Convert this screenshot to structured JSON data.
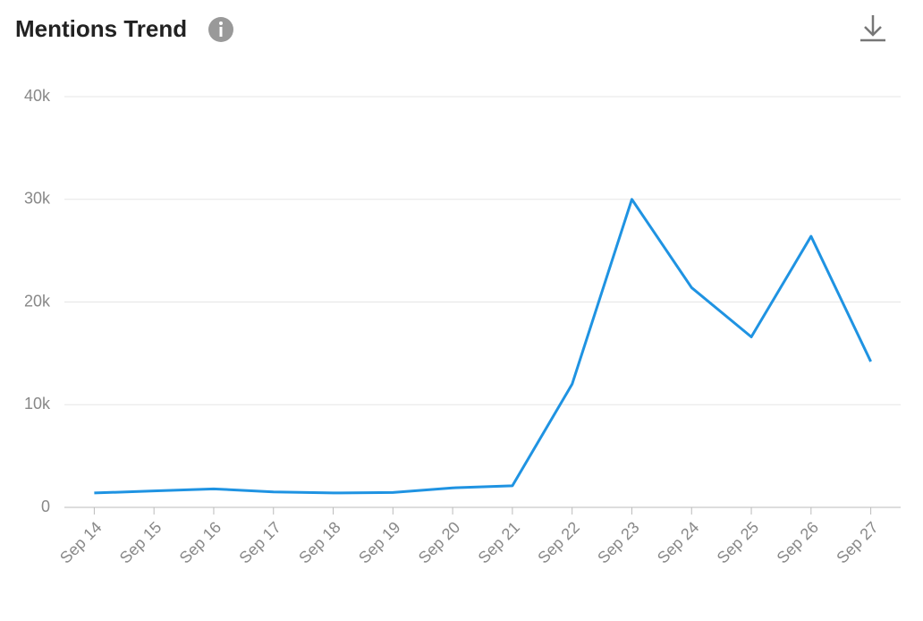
{
  "chart_data": {
    "type": "line",
    "title": "Mentions Trend",
    "categories": [
      "Sep 14",
      "Sep 15",
      "Sep 16",
      "Sep 17",
      "Sep 18",
      "Sep 19",
      "Sep 20",
      "Sep 21",
      "Sep 22",
      "Sep 23",
      "Sep 24",
      "Sep 25",
      "Sep 26",
      "Sep 27"
    ],
    "values": [
      1400,
      1600,
      1800,
      1500,
      1400,
      1450,
      1900,
      2100,
      12000,
      30000,
      21400,
      16600,
      26400,
      14200
    ],
    "color": "#1f93e2",
    "ylim": [
      0,
      40000
    ],
    "yticks": [
      0,
      {
        "value": 10000,
        "label": "10k"
      },
      {
        "value": 20000,
        "label": "20k"
      },
      {
        "value": 30000,
        "label": "30k"
      },
      {
        "value": 40000,
        "label": "40k"
      }
    ],
    "grid": true
  }
}
